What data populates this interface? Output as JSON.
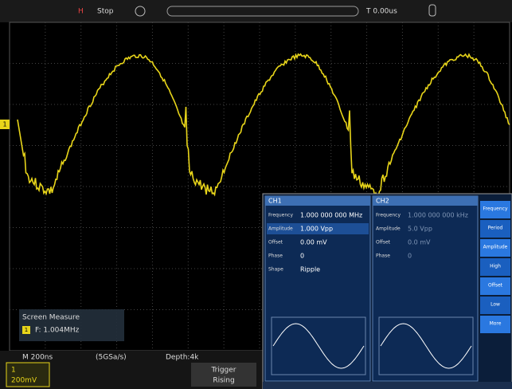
{
  "top_bar": {
    "channel": "H",
    "status": "Stop",
    "trigger_time": "T 0.00us"
  },
  "left_marker": "1",
  "measure": {
    "title": "Screen Measure",
    "marker": "1",
    "text": "F: 1.004MHz"
  },
  "status_bar": {
    "timebase": "M 200ns",
    "sample_rate": "(5GSa/s)",
    "depth": "Depth:4k",
    "channel": {
      "number": "1",
      "scale": "200mV"
    },
    "trigger": {
      "label": "Trigger",
      "mode": "Rising"
    }
  },
  "generator": {
    "panels": [
      {
        "header": "CH1",
        "rows": [
          {
            "label": "Frequency",
            "value": "1.000 000 000 MHz"
          },
          {
            "label": "Amplitude",
            "value": "1.000 Vpp"
          },
          {
            "label": "Offset",
            "value": "0.00 mV"
          },
          {
            "label": "Phase",
            "value": "0"
          },
          {
            "label": "Shape",
            "value": "Ripple"
          }
        ]
      },
      {
        "header": "CH2",
        "rows": [
          {
            "label": "Frequency",
            "value": "1.000 000 000 kHz"
          },
          {
            "label": "Amplitude",
            "value": "5.0 Vpp"
          },
          {
            "label": "Offset",
            "value": "0.0 mV"
          },
          {
            "label": "Phase",
            "value": "0"
          }
        ]
      }
    ],
    "menu": [
      "Frequency",
      "Period",
      "Amplitude",
      "High",
      "Offset",
      "Low",
      "More"
    ]
  }
}
